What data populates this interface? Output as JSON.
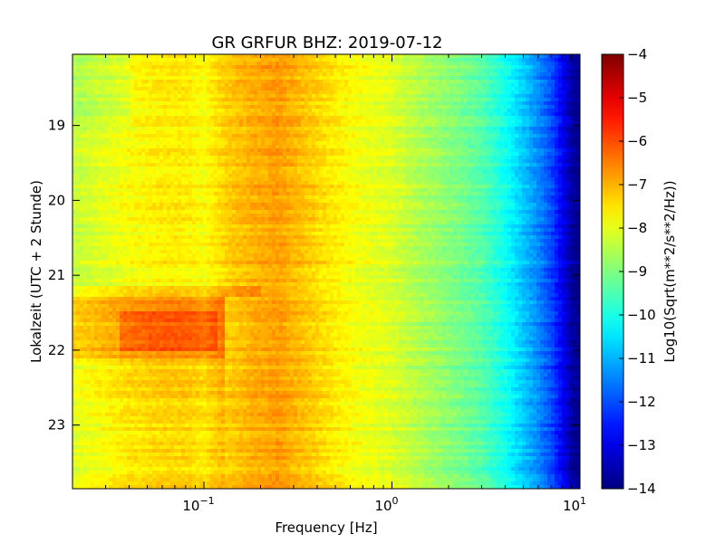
{
  "chart_data": {
    "type": "heatmap",
    "title": "GR GRFUR BHZ: 2019-07-12",
    "xlabel": "Frequency [Hz]",
    "ylabel": "Lokalzeit (UTC + 2 Stunde)",
    "x_scale": "log",
    "xlim": [
      0.02,
      10
    ],
    "ylim": [
      18.05,
      23.85
    ],
    "y_inverted": true,
    "x_ticks": [
      {
        "value": 0.1,
        "base": "10",
        "exp": "−1"
      },
      {
        "value": 1,
        "base": "10",
        "exp": "0"
      },
      {
        "value": 10,
        "base": "10",
        "exp": "1"
      }
    ],
    "y_ticks": [
      {
        "value": 19,
        "label": "19"
      },
      {
        "value": 20,
        "label": "20"
      },
      {
        "value": 21,
        "label": "21"
      },
      {
        "value": 22,
        "label": "22"
      },
      {
        "value": 23,
        "label": "23"
      }
    ],
    "colorbar": {
      "label": "Log10(Sqrt(m**2/s**2/Hz))",
      "min": -14,
      "max": -4,
      "colormap": "jet",
      "ticks": [
        {
          "value": -4,
          "label": "−4"
        },
        {
          "value": -5,
          "label": "−5"
        },
        {
          "value": -6,
          "label": "−6"
        },
        {
          "value": -7,
          "label": "−7"
        },
        {
          "value": -8,
          "label": "−8"
        },
        {
          "value": -9,
          "label": "−9"
        },
        {
          "value": -10,
          "label": "−10"
        },
        {
          "value": -11,
          "label": "−11"
        },
        {
          "value": -12,
          "label": "−12"
        },
        {
          "value": -13,
          "label": "−13"
        },
        {
          "value": -14,
          "label": "−14"
        }
      ]
    },
    "frequency_profile": {
      "x": [
        0.02,
        0.04,
        0.06,
        0.08,
        0.1,
        0.13,
        0.18,
        0.25,
        0.35,
        0.5,
        0.7,
        1.0,
        1.5,
        2.0,
        3.0,
        4.0,
        5.0,
        6.0,
        7.0,
        8.0,
        9.0,
        10.0
      ],
      "values": [
        -8.3,
        -7.8,
        -7.6,
        -7.6,
        -7.8,
        -7.3,
        -7.0,
        -6.8,
        -7.2,
        -7.6,
        -7.9,
        -8.1,
        -8.6,
        -8.9,
        -9.4,
        -10.1,
        -10.8,
        -11.4,
        -12.0,
        -12.8,
        -13.6,
        -14.0
      ]
    },
    "time_anomalies": [
      {
        "t_start": 21.15,
        "t_end": 21.3,
        "f_min": 0.02,
        "f_max": 0.2,
        "delta": 0.5
      },
      {
        "t_start": 21.3,
        "t_end": 22.1,
        "f_min": 0.02,
        "f_max": 0.13,
        "delta": 1.0
      },
      {
        "t_start": 21.5,
        "t_end": 22.0,
        "f_min": 0.035,
        "f_max": 0.12,
        "delta": 0.5
      },
      {
        "t_start": 22.1,
        "t_end": 22.6,
        "f_min": 0.02,
        "f_max": 0.13,
        "delta": 0.4
      },
      {
        "t_start": 22.6,
        "t_end": 23.85,
        "f_min": 0.02,
        "f_max": 0.13,
        "delta": 0.25
      },
      {
        "t_start": 18.05,
        "t_end": 19.0,
        "f_min": 0.02,
        "f_max": 0.04,
        "delta": -0.3
      }
    ]
  }
}
